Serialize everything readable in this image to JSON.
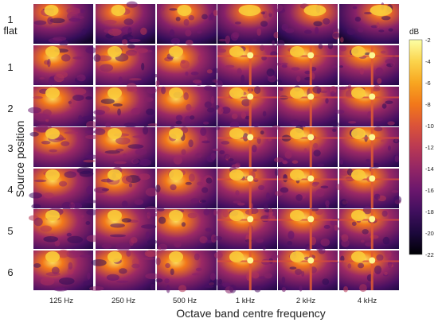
{
  "chart_data": {
    "type": "heatmap",
    "title": "",
    "xlabel": "Octave band centre frequency",
    "ylabel": "Source position",
    "columns": [
      "125 Hz",
      "250 Hz",
      "500 Hz",
      "1 kHz",
      "2 kHz",
      "4 kHz"
    ],
    "rows": [
      {
        "label": "1",
        "sublabel": "flat"
      },
      {
        "label": "1",
        "sublabel": ""
      },
      {
        "label": "2",
        "sublabel": ""
      },
      {
        "label": "3",
        "sublabel": ""
      },
      {
        "label": "4",
        "sublabel": ""
      },
      {
        "label": "5",
        "sublabel": ""
      },
      {
        "label": "6",
        "sublabel": ""
      }
    ],
    "colorbar": {
      "label": "dB",
      "min": -22,
      "max": -2,
      "ticks": [
        -2,
        -4,
        -6,
        -8,
        -10,
        -12,
        -14,
        -16,
        -18,
        -20,
        -22
      ],
      "colormap": "inferno"
    },
    "grid": false
  }
}
